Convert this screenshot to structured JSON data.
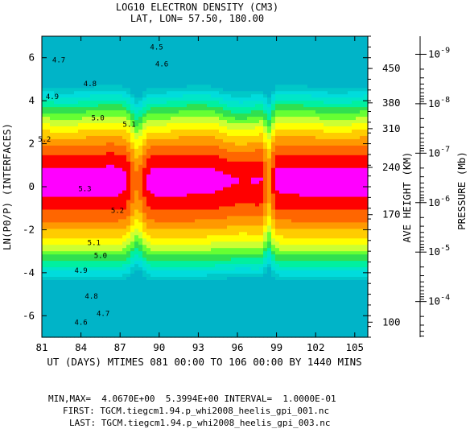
{
  "chart_data": {
    "type": "heatmap",
    "title": "LOG10 ELECTRON DENSITY (CM3)",
    "subtitle": "LAT, LON= 57.50,   180.00",
    "xlabel": "UT (DAYS) MTIMES 081 00:00 TO 106 00:00 BY 1440 MINS",
    "ylabel": "LN(P0/P) (INTERFACES)",
    "xlim": [
      81,
      106
    ],
    "ylim": [
      -7,
      7
    ],
    "x_ticks": [
      "81",
      "84",
      "87",
      "90",
      "93",
      "96",
      "99",
      "102",
      "105"
    ],
    "y_ticks": [
      "6",
      "4",
      "2",
      "0",
      "-2",
      "-4",
      "-6"
    ],
    "right_axis_1": {
      "label": "AVE HEIGHT (KM)",
      "ticks": [
        {
          "label": "450",
          "y": 5.5
        },
        {
          "label": "380",
          "y": 3.9
        },
        {
          "label": "310",
          "y": 2.7
        },
        {
          "label": "240",
          "y": 0.9
        },
        {
          "label": "170",
          "y": -1.3
        },
        {
          "label": "100",
          "y": -6.3
        }
      ]
    },
    "right_axis_2": {
      "label": "PRESSURE (Mb)",
      "ticks": [
        {
          "base": "10",
          "exp": "-9",
          "y": 6.16
        },
        {
          "base": "10",
          "exp": "-8",
          "y": 3.86
        },
        {
          "base": "10",
          "exp": "-7",
          "y": 1.56
        },
        {
          "base": "10",
          "exp": "-6",
          "y": -0.74
        },
        {
          "base": "10",
          "exp": "-5",
          "y": -3.04
        },
        {
          "base": "10",
          "exp": "-4",
          "y": -5.34
        }
      ]
    },
    "contour_levels": [
      4.1,
      4.2,
      4.3,
      4.4,
      4.5,
      4.6,
      4.7,
      4.8,
      4.9,
      5.0,
      5.1,
      5.2,
      5.3
    ],
    "level_colors": [
      "#00c8c8",
      "#00dcdc",
      "#00e6c8",
      "#00f0a0",
      "#30e050",
      "#66ff33",
      "#ccff33",
      "#ffff00",
      "#ffcc00",
      "#ff9900",
      "#ff6600",
      "#ff0000",
      "#ff00ff"
    ],
    "contour_labels": [
      {
        "text": "4.5",
        "x": 89.8,
        "y": 6.5
      },
      {
        "text": "4.6",
        "x": 90.2,
        "y": 5.7
      },
      {
        "text": "4.7",
        "x": 82.3,
        "y": 5.9
      },
      {
        "text": "4.8",
        "x": 84.7,
        "y": 4.8
      },
      {
        "text": "4.9",
        "x": 81.8,
        "y": 4.2
      },
      {
        "text": "5.0",
        "x": 85.3,
        "y": 3.2
      },
      {
        "text": "5.1",
        "x": 87.7,
        "y": 2.9
      },
      {
        "text": "5.2",
        "x": 81.2,
        "y": 2.2
      },
      {
        "text": "5.3",
        "x": 84.3,
        "y": -0.1
      },
      {
        "text": "5.2",
        "x": 86.8,
        "y": -1.1
      },
      {
        "text": "5.1",
        "x": 85.0,
        "y": -2.6
      },
      {
        "text": "5.0",
        "x": 85.5,
        "y": -3.2
      },
      {
        "text": "4.9",
        "x": 84.0,
        "y": -3.9
      },
      {
        "text": "4.8",
        "x": 84.8,
        "y": -5.1
      },
      {
        "text": "4.7",
        "x": 85.7,
        "y": -5.9
      },
      {
        "text": "4.6",
        "x": 84.0,
        "y": -6.3
      }
    ],
    "field_model": "smooth pressure-level profile of log10 electron density, peak near LN(P0/P)=0.3, with day-to-day variability; peak ~5.3 between days 82-97 and 99-106, dip near day 88 and day 98.5"
  },
  "footer": {
    "minmax": "MIN,MAX=  4.0670E+00  5.3994E+00 INTERVAL=  1.0000E-01",
    "first": "FIRST: TGCM.tiegcm1.94.p_whi2008_heelis_gpi_001.nc",
    "last": "LAST: TGCM.tiegcm1.94.p_whi2008_heelis_gpi_003.nc"
  }
}
